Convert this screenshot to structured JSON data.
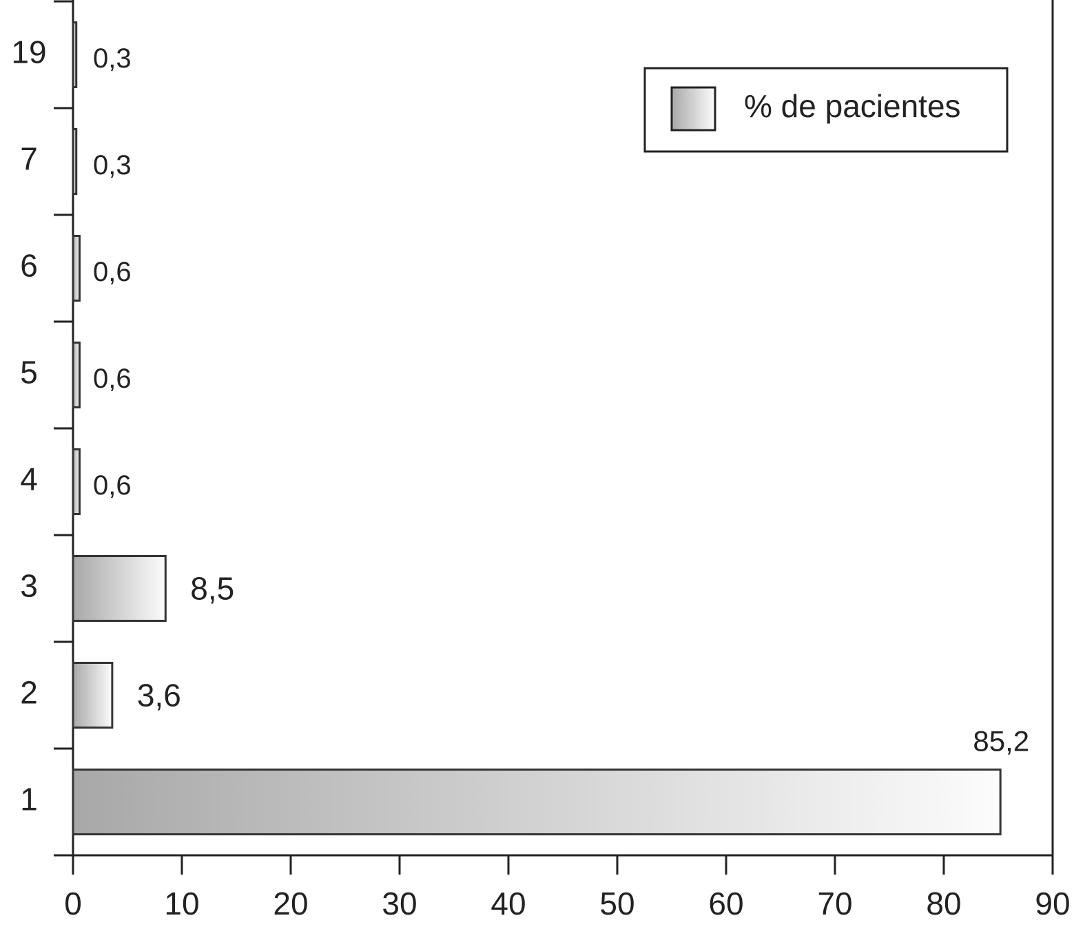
{
  "chart_data": {
    "type": "barh",
    "categories": [
      "1",
      "2",
      "3",
      "4",
      "5",
      "6",
      "7",
      "19"
    ],
    "series": [
      {
        "name": "% de pacientes",
        "color": "#a8a8a8",
        "values": [
          85.2,
          3.6,
          8.5,
          0.6,
          0.6,
          0.6,
          0.3,
          0.3
        ],
        "value_labels": [
          "85,2",
          "3,6",
          "8,5",
          "0,6",
          "0,6",
          "0,6",
          "0,3",
          "0,3"
        ]
      }
    ],
    "xlim": [
      0,
      90
    ],
    "xticks": [
      0,
      10,
      20,
      30,
      40,
      50,
      60,
      70,
      80,
      90
    ],
    "grid": false,
    "legend": "upper right"
  }
}
